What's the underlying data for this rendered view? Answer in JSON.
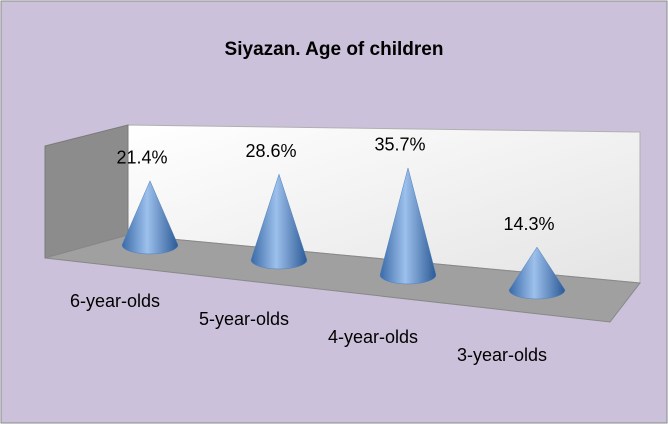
{
  "chart_data": {
    "type": "cone",
    "title": "Siyazan. Age of children",
    "categories": [
      "6-year-olds",
      "5-year-olds",
      "4-year-olds",
      "3-year-olds"
    ],
    "values": [
      21.4,
      28.6,
      35.7,
      14.3
    ],
    "value_labels": [
      "21.4%",
      "28.6%",
      "35.7%",
      "14.3%"
    ],
    "color": "#4f81bd"
  }
}
